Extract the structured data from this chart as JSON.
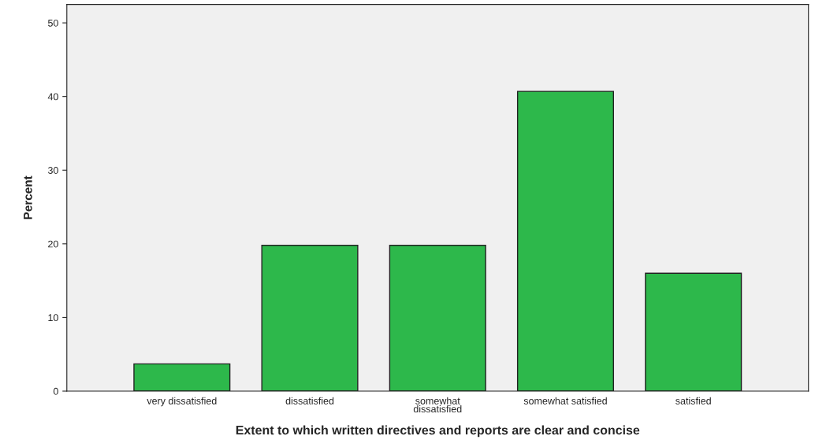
{
  "chart_data": {
    "type": "bar",
    "xlabel": "Extent to which written directives and reports are clear and concise",
    "ylabel": "Percent",
    "categories": [
      "very dissatisfied",
      "dissatisfied",
      "somewhat\ndissatisfied",
      "somewhat satisfied",
      "satisfied"
    ],
    "values": [
      3.7,
      19.8,
      19.8,
      40.7,
      16.0
    ],
    "color": "#2db84b",
    "ylim": [
      0,
      52.5
    ],
    "yticks": [
      0,
      10,
      20,
      30,
      40,
      50
    ],
    "grid": false
  }
}
